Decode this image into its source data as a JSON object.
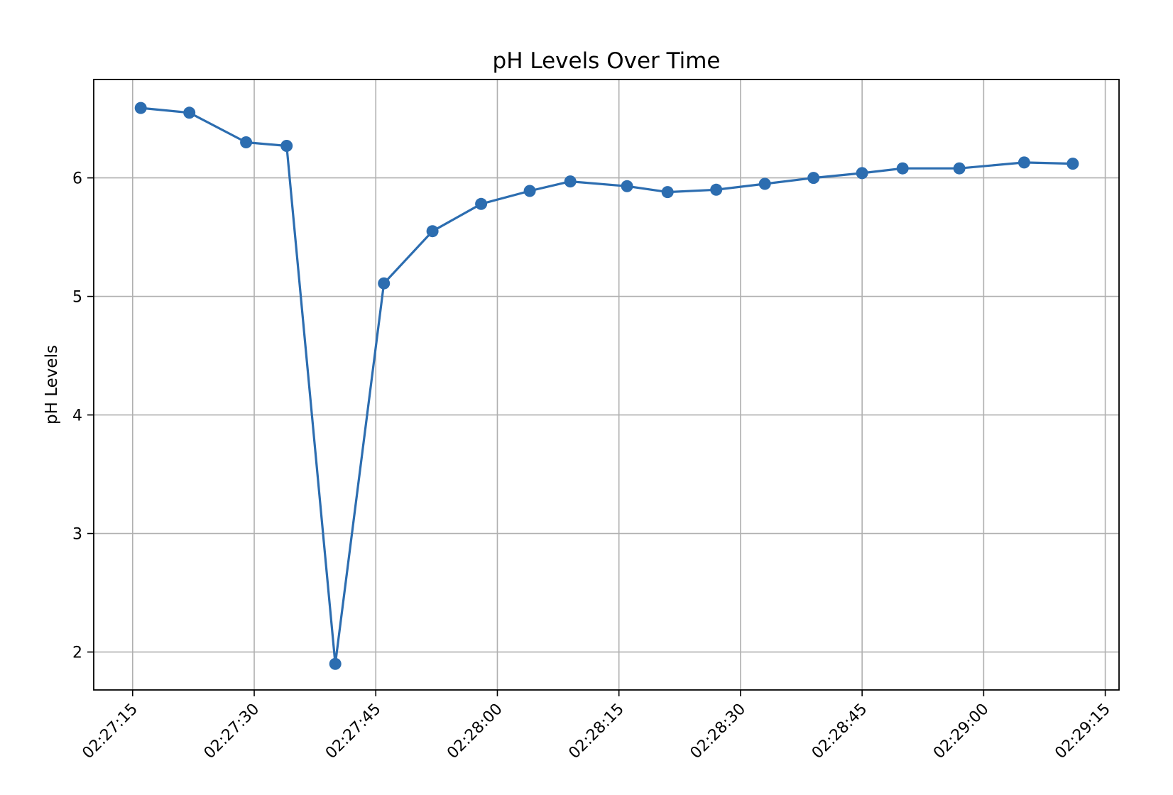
{
  "chart_data": {
    "type": "line",
    "title": "pH Levels Over Time",
    "xlabel": "",
    "ylabel": "pH Levels",
    "x_axis": {
      "kind": "time",
      "range": [
        "02:27:10.2",
        "02:29:16.7"
      ],
      "ticks": [
        "02:27:15",
        "02:27:30",
        "02:27:45",
        "02:28:00",
        "02:28:15",
        "02:28:30",
        "02:28:45",
        "02:29:00",
        "02:29:15"
      ]
    },
    "y_axis": {
      "range": [
        1.68,
        6.83
      ],
      "ticks": [
        2,
        3,
        4,
        5,
        6
      ]
    },
    "grid": true,
    "marker": "circle",
    "color": "#2c6db0",
    "series": [
      {
        "name": "",
        "x": [
          "02:27:16",
          "02:27:22",
          "02:27:29",
          "02:27:34",
          "02:27:40",
          "02:27:46",
          "02:27:52",
          "02:27:58",
          "02:28:04",
          "02:28:09",
          "02:28:16",
          "02:28:21",
          "02:28:27",
          "02:28:33",
          "02:28:39",
          "02:28:45",
          "02:28:50",
          "02:28:57",
          "02:29:05",
          "02:29:11"
        ],
        "values": [
          6.59,
          6.55,
          6.3,
          6.27,
          1.9,
          5.11,
          5.55,
          5.78,
          5.89,
          5.97,
          5.93,
          5.88,
          5.9,
          5.95,
          6.0,
          6.04,
          6.08,
          6.08,
          6.13,
          6.12
        ]
      }
    ]
  }
}
